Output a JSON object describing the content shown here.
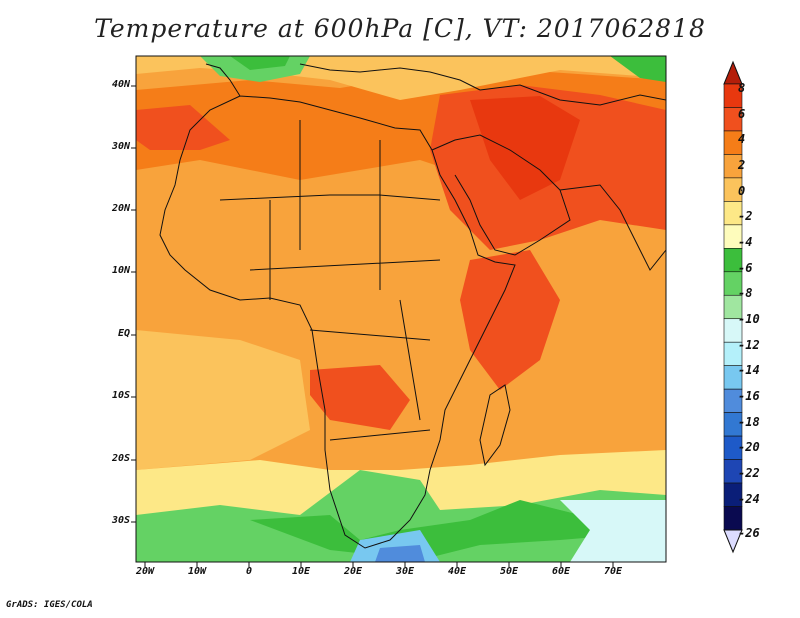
{
  "title": "Temperature at 600hPa [C], VT: 2017062818",
  "footer": "GrADS: IGES/COLA",
  "variable": "Temperature",
  "level": "600hPa",
  "units": "C",
  "valid_time": "2017062818",
  "latitude_labels": [
    "40N",
    "30N",
    "20N",
    "10N",
    "EQ",
    "10S",
    "20S",
    "30S"
  ],
  "longitude_labels": [
    "20W",
    "10W",
    "0",
    "10E",
    "20E",
    "30E",
    "40E",
    "50E",
    "60E",
    "70E"
  ],
  "colorbar": {
    "labels": [
      "8",
      "6",
      "4",
      "2",
      "0",
      "-2",
      "-4",
      "-6",
      "-8",
      "-10",
      "-12",
      "-14",
      "-16",
      "-18",
      "-20",
      "-22",
      "-24",
      "-26"
    ],
    "colors": [
      "#e8380f",
      "#f0501e",
      "#f57d18",
      "#f8a33c",
      "#fbc35c",
      "#fde887",
      "#fefcbc",
      "#3cbe3c",
      "#64d264",
      "#a0e6a0",
      "#d7f8f8",
      "#b4f0fa",
      "#78c8f0",
      "#508cdc",
      "#3278d2",
      "#1e5ac8",
      "#1e46b4",
      "#0a1e78",
      "#0a0a50"
    ],
    "under_color": "#dcdcff",
    "over_color": "#b41e0a"
  },
  "map": {
    "region": "Africa, Middle East and Indian Ocean",
    "lon_range": [
      -22,
      80
    ],
    "lat_range": [
      -37,
      45
    ]
  }
}
